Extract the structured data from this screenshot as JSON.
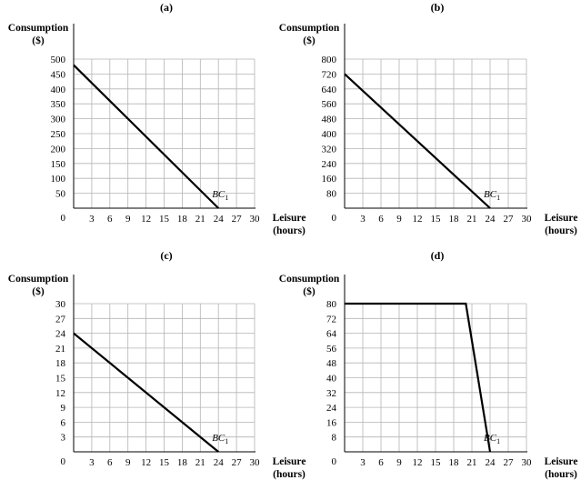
{
  "chart_data": [
    {
      "type": "line",
      "panel_label": "(a)",
      "ylabel_line1": "Consumption",
      "ylabel_line2": "($)",
      "xlabel_line1": "Leisure",
      "xlabel_line2": "(hours)",
      "xlim": [
        0,
        30
      ],
      "ylim": [
        0,
        500
      ],
      "x_ticks": [
        "3",
        "6",
        "9",
        "12",
        "15",
        "18",
        "21",
        "24",
        "27",
        "30"
      ],
      "y_ticks": [
        "50",
        "100",
        "150",
        "200",
        "250",
        "300",
        "350",
        "400",
        "450",
        "500"
      ],
      "x_tick_values": [
        3,
        6,
        9,
        12,
        15,
        18,
        21,
        24,
        27,
        30
      ],
      "y_tick_values": [
        50,
        100,
        150,
        200,
        250,
        300,
        350,
        400,
        450,
        500
      ],
      "origin_label": "0",
      "grid": true,
      "series": [
        {
          "label": "BC",
          "label_sub": "1",
          "x": [
            0,
            24
          ],
          "y": [
            480,
            0
          ]
        }
      ]
    },
    {
      "type": "line",
      "panel_label": "(b)",
      "ylabel_line1": "Consumption",
      "ylabel_line2": "($)",
      "xlabel_line1": "Leisure",
      "xlabel_line2": "(hours)",
      "xlim": [
        0,
        30
      ],
      "ylim": [
        0,
        800
      ],
      "x_ticks": [
        "3",
        "6",
        "9",
        "12",
        "15",
        "18",
        "21",
        "24",
        "27",
        "30"
      ],
      "y_ticks": [
        "80",
        "160",
        "240",
        "320",
        "400",
        "480",
        "560",
        "640",
        "720",
        "800"
      ],
      "x_tick_values": [
        3,
        6,
        9,
        12,
        15,
        18,
        21,
        24,
        27,
        30
      ],
      "y_tick_values": [
        80,
        160,
        240,
        320,
        400,
        480,
        560,
        640,
        720,
        800
      ],
      "origin_label": "0",
      "grid": true,
      "series": [
        {
          "label": "BC",
          "label_sub": "1",
          "x": [
            0,
            24
          ],
          "y": [
            720,
            0
          ]
        }
      ]
    },
    {
      "type": "line",
      "panel_label": "(c)",
      "ylabel_line1": "Consumption",
      "ylabel_line2": "($)",
      "xlabel_line1": "Leisure",
      "xlabel_line2": "(hours)",
      "xlim": [
        0,
        30
      ],
      "ylim": [
        0,
        30
      ],
      "x_ticks": [
        "3",
        "6",
        "9",
        "12",
        "15",
        "18",
        "21",
        "24",
        "27",
        "30"
      ],
      "y_ticks": [
        "3",
        "6",
        "9",
        "12",
        "15",
        "18",
        "21",
        "24",
        "27",
        "30"
      ],
      "x_tick_values": [
        3,
        6,
        9,
        12,
        15,
        18,
        21,
        24,
        27,
        30
      ],
      "y_tick_values": [
        3,
        6,
        9,
        12,
        15,
        18,
        21,
        24,
        27,
        30
      ],
      "origin_label": "0",
      "grid": true,
      "series": [
        {
          "label": "BC",
          "label_sub": "1",
          "x": [
            0,
            24
          ],
          "y": [
            24,
            0
          ]
        }
      ]
    },
    {
      "type": "line",
      "panel_label": "(d)",
      "ylabel_line1": "Consumption",
      "ylabel_line2": "($)",
      "xlabel_line1": "Leisure",
      "xlabel_line2": "(hours)",
      "xlim": [
        0,
        30
      ],
      "ylim": [
        0,
        80
      ],
      "x_ticks": [
        "3",
        "6",
        "9",
        "12",
        "15",
        "18",
        "21",
        "24",
        "27",
        "30"
      ],
      "y_ticks": [
        "8",
        "16",
        "24",
        "32",
        "40",
        "48",
        "56",
        "64",
        "72",
        "80"
      ],
      "x_tick_values": [
        3,
        6,
        9,
        12,
        15,
        18,
        21,
        24,
        27,
        30
      ],
      "y_tick_values": [
        8,
        16,
        24,
        32,
        40,
        48,
        56,
        64,
        72,
        80
      ],
      "origin_label": "0",
      "grid": true,
      "series": [
        {
          "label": "BC",
          "label_sub": "1",
          "x": [
            0,
            20,
            24
          ],
          "y": [
            80,
            80,
            0
          ]
        }
      ]
    }
  ]
}
